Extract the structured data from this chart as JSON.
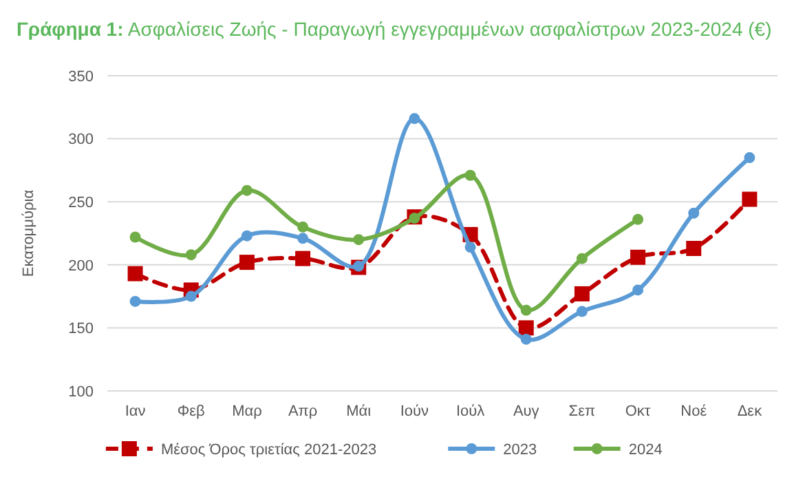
{
  "chart_data": {
    "type": "line",
    "title": "Γράφημα 1:  Ασφαλίσεις Ζωής - Παραγωγή εγγεγραμμένων ασφαλίστρων 2023-2024 (€)",
    "ylabel": "Εκατομμύρια",
    "categories": [
      "Ιαν",
      "Φεβ",
      "Μαρ",
      "Απρ",
      "Μάι",
      "Ιούν",
      "Ιούλ",
      "Αυγ",
      "Σεπ",
      "Οκτ",
      "Νοέ",
      "Δεκ"
    ],
    "series": [
      {
        "name": "Μέσος Όρος τριετίας 2021-2023",
        "color": "#c00000",
        "marker": "square",
        "line_style": "dashed",
        "values": [
          193,
          180,
          202,
          205,
          198,
          238,
          224,
          150,
          177,
          206,
          213,
          252
        ]
      },
      {
        "name": "2023",
        "color": "#5b9bd5",
        "marker": "circle",
        "line_style": "solid",
        "values": [
          171,
          175,
          223,
          221,
          199,
          316,
          214,
          141,
          163,
          180,
          241,
          285
        ]
      },
      {
        "name": "2024",
        "color": "#70ad47",
        "marker": "circle",
        "line_style": "solid",
        "values": [
          222,
          208,
          259,
          230,
          220,
          237,
          271,
          164,
          205,
          236,
          null,
          null
        ]
      }
    ],
    "ylim": [
      100,
      350
    ],
    "yticks": [
      100,
      150,
      200,
      250,
      300,
      350
    ],
    "grid": "y",
    "legend": "bottom"
  }
}
